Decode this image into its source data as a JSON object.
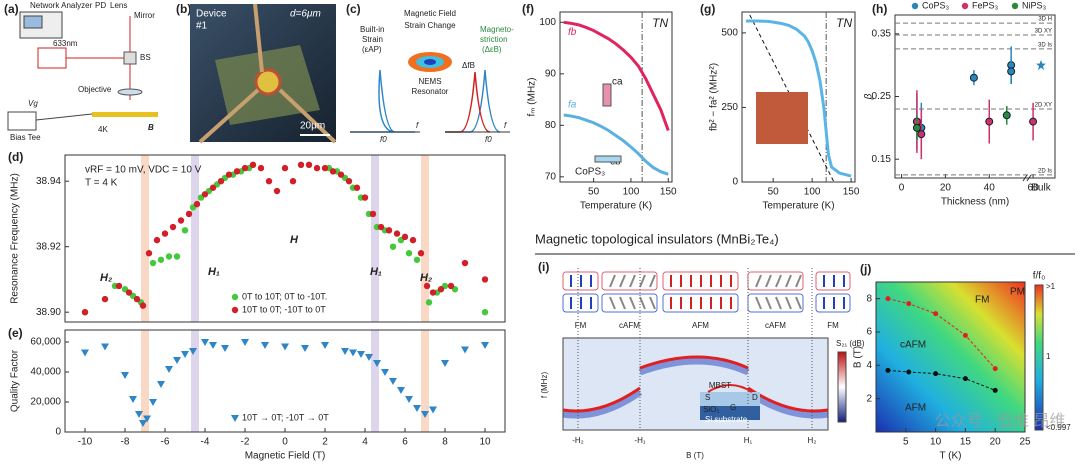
{
  "heading": "Magnetic topological insulators (MnBi₂Te₄)",
  "watermark": "公众号 · 低维 昂维",
  "panels": {
    "a": {
      "label": "(a)",
      "analyzer": "Network Analyzer",
      "pd": "PD",
      "lens": "Lens",
      "mirror": "Mirror",
      "laser": "633nm",
      "bs": "BS",
      "objective": "Objective",
      "vg": "Vg",
      "bias": "Bias Tee",
      "temp": "4K",
      "field": "B"
    },
    "b": {
      "label": "(b)",
      "device": "Device",
      "number": "#1",
      "diameter": "d=6μm",
      "scale": "20μm"
    },
    "c": {
      "label": "(c)",
      "builtin": "Built-in",
      "strain": "Strain",
      "eps": "(εAP)",
      "field": "Magnetic Field",
      "change": "Strain Change",
      "magneto": "Magneto-",
      "striction": "striction",
      "deps": "(ΔεB)",
      "nems": "NEMS",
      "resonator": "Resonator",
      "f0a": "f0",
      "f0b": "f0",
      "fa": "f",
      "fb": "f",
      "dfb": "ΔfB"
    },
    "i": {
      "label": "(i)",
      "states": [
        "FM",
        "cAFM",
        "AFM",
        "cAFM",
        "FM"
      ],
      "ylabel": "f (MHz)",
      "xlabel": "B (T)",
      "xticks": [
        "-H₂",
        "-H₁",
        "H₁",
        "H₂"
      ],
      "cbar": "S₂₁ (dB)",
      "inset": [
        "MBST",
        "S",
        "D",
        "G",
        "SiO₂",
        "Si substrate"
      ]
    }
  },
  "chart_data": [
    {
      "label": "(d)",
      "type": "scatter",
      "ylabel": "Resonance Frequency (MHz)",
      "xlim": [
        -11,
        11
      ],
      "ylim": [
        38.897,
        38.948
      ],
      "yticks": [
        {
          "value": 38.9,
          "label": "38.90"
        },
        {
          "value": 38.92,
          "label": "38.92"
        },
        {
          "value": 38.94,
          "label": "38.94"
        }
      ],
      "annotations": [
        "vRF = 10 mV, VDC = 10 V",
        "T = 4 K",
        "H₂",
        "H₁",
        "H",
        "H₁",
        "H₂"
      ],
      "bands": [
        {
          "x": -7,
          "color": "#f9d9c6"
        },
        {
          "x": -4.5,
          "color": "#ddd5ec"
        },
        {
          "x": 4.5,
          "color": "#ddd5ec"
        },
        {
          "x": 7,
          "color": "#f9d9c6"
        }
      ],
      "series": [
        {
          "name": "0T to 10T; 0T to -10T.",
          "color": "#44c83c",
          "marker": "circle",
          "x": [
            -10,
            -8.5,
            -8,
            -7.6,
            -7.2,
            -6.6,
            -6.2,
            -5.8,
            -5.4,
            -5,
            -4.6,
            -4.2,
            -3.8,
            -3.4,
            -3,
            -2.6,
            -2.2,
            -1.8,
            2.2,
            2.6,
            3,
            3.4,
            3.8,
            4.2,
            4.6,
            5,
            5.4,
            5.8,
            6.2,
            6.6,
            7.2,
            7.6,
            8,
            8.5,
            10
          ],
          "values": [
            38.9,
            38.908,
            38.907,
            38.905,
            38.903,
            38.915,
            38.916,
            38.917,
            38.917,
            38.925,
            38.932,
            38.935,
            38.937,
            38.939,
            38.941,
            38.942,
            38.943,
            38.944,
            38.944,
            38.943,
            38.941,
            38.938,
            38.935,
            38.93,
            38.926,
            38.925,
            38.92,
            38.922,
            38.918,
            38.916,
            38.903,
            38.906,
            38.908,
            38.907,
            38.9
          ]
        },
        {
          "name": "10T to 0T; -10T to 0T",
          "color": "#d0202a",
          "marker": "circle",
          "x": [
            -10,
            -9,
            -8.3,
            -7.8,
            -7.4,
            -7.1,
            -6.8,
            -6.4,
            -6,
            -5.6,
            -5.2,
            -4.8,
            -4.4,
            -4,
            -3.6,
            -3.2,
            -2.8,
            -2.4,
            -2,
            -1.6,
            -1.2,
            -0.8,
            -0.4,
            0,
            0.4,
            0.8,
            1.2,
            1.6,
            2,
            2.4,
            2.8,
            3.2,
            3.6,
            4,
            4.4,
            4.8,
            5.2,
            5.6,
            6,
            6.4,
            6.8,
            7.1,
            7.4,
            7.8,
            8.3,
            9,
            10
          ],
          "values": [
            38.9,
            38.904,
            38.908,
            38.906,
            38.904,
            38.902,
            38.918,
            38.922,
            38.924,
            38.926,
            38.928,
            38.93,
            38.933,
            38.936,
            38.938,
            38.94,
            38.942,
            38.943,
            38.944,
            38.945,
            38.944,
            38.94,
            38.937,
            38.944,
            38.94,
            38.945,
            38.945,
            38.944,
            38.944,
            38.943,
            38.942,
            38.94,
            38.938,
            38.935,
            38.93,
            38.926,
            38.925,
            38.924,
            38.923,
            38.922,
            38.918,
            38.908,
            38.906,
            38.907,
            38.908,
            38.915,
            38.91
          ]
        }
      ]
    },
    {
      "label": "(e)",
      "type": "scatter",
      "xlabel": "Magnetic Field (T)",
      "ylabel": "Quality Factor",
      "xlim": [
        -11,
        11
      ],
      "ylim": [
        0,
        68000
      ],
      "xticks": [
        -10,
        -8,
        -6,
        -4,
        -2,
        0,
        2,
        4,
        6,
        8,
        10
      ],
      "yticks": [
        0,
        {
          "value": 20000,
          "label": "20,000"
        },
        {
          "value": 40000,
          "label": "40,000"
        },
        {
          "value": 60000,
          "label": "60,000"
        }
      ],
      "bands": [
        {
          "x": -7,
          "color": "#f9d9c6"
        },
        {
          "x": -4.5,
          "color": "#ddd5ec"
        },
        {
          "x": 4.5,
          "color": "#ddd5ec"
        },
        {
          "x": 7,
          "color": "#f9d9c6"
        }
      ],
      "series": [
        {
          "name": "10T → 0T; -10T → 0T",
          "color": "#2e86c8",
          "marker": "tri",
          "x": [
            -10,
            -9,
            -8,
            -7.6,
            -7.3,
            -7.1,
            -6.9,
            -6.6,
            -6.2,
            -5.8,
            -5.4,
            -5,
            -4.6,
            -4,
            -3.6,
            -3,
            -2,
            -1,
            0,
            1,
            2,
            3,
            3.4,
            3.8,
            4.2,
            4.6,
            5,
            5.4,
            5.8,
            6.2,
            6.6,
            7,
            7.4,
            8,
            9,
            10
          ],
          "values": [
            53000,
            57000,
            38000,
            22000,
            12000,
            6000,
            9000,
            20000,
            32000,
            42000,
            48000,
            52000,
            54000,
            60000,
            58000,
            56000,
            60000,
            58000,
            57000,
            56000,
            58000,
            54000,
            53000,
            52000,
            50000,
            46000,
            40000,
            34000,
            28000,
            22000,
            16000,
            12000,
            15000,
            46000,
            55000,
            58000
          ]
        }
      ]
    },
    {
      "label": "(f)",
      "type": "line",
      "xlabel": "Temperature (K)",
      "ylabel": "fₘ (MHz)",
      "xlim": [
        5,
        155
      ],
      "ylim": [
        69,
        102
      ],
      "xticks": [
        50,
        100,
        150
      ],
      "yticks": [
        70,
        80,
        90,
        100
      ],
      "tn": 115,
      "tn_label": "TN",
      "annotations": [
        "CoPS₃",
        "cb",
        "ca"
      ],
      "x": [
        10,
        20,
        30,
        40,
        50,
        60,
        70,
        80,
        90,
        100,
        110,
        120,
        130,
        140,
        150
      ],
      "series": [
        {
          "name": "fb",
          "color": "#e0245e",
          "values": [
            100,
            99.8,
            99.5,
            99,
            98.4,
            97.6,
            96.8,
            95.8,
            94.6,
            93.2,
            91.5,
            89,
            86,
            83,
            79
          ]
        },
        {
          "name": "fa",
          "color": "#5bb0e0",
          "values": [
            82,
            81.8,
            81.5,
            81,
            80.5,
            79.8,
            79,
            78,
            77,
            75.8,
            74.5,
            73,
            71.8,
            71,
            70.5
          ]
        }
      ]
    },
    {
      "label": "(g)",
      "type": "line",
      "xlabel": "Temperature (K)",
      "ylabel": "fb² − fa² (MHz²)",
      "xlim": [
        10,
        155
      ],
      "ylim": [
        0,
        570
      ],
      "xticks": [
        50,
        100,
        150
      ],
      "yticks": [
        0,
        250,
        500
      ],
      "tn": 118,
      "tn_label": "TN",
      "x": [
        15,
        30,
        45,
        60,
        70,
        80,
        90,
        95,
        100,
        105,
        110,
        115,
        118,
        121,
        125,
        135,
        150
      ],
      "series": [
        {
          "color": "#5ab4e6",
          "values": [
            540,
            540,
            538,
            532,
            525,
            512,
            490,
            470,
            440,
            400,
            340,
            250,
            170,
            90,
            50,
            30,
            20
          ]
        }
      ]
    },
    {
      "label": "(h)",
      "type": "errorbar",
      "xlabel": "Thickness (nm)",
      "ylabel": "β",
      "xlim": [
        -3,
        70
      ],
      "ylim": [
        0.12,
        0.38
      ],
      "xticks": [
        0,
        20,
        40,
        60
      ],
      "yticks": [
        0.15,
        0.25,
        0.35
      ],
      "bulk_label": "Bulk",
      "ref_lines": [
        {
          "value": 0.367,
          "label": "3D H"
        },
        {
          "value": 0.348,
          "label": "3D XY"
        },
        {
          "value": 0.326,
          "label": "3D Is"
        },
        {
          "value": 0.23,
          "label": "2D XY"
        },
        {
          "value": 0.125,
          "label": "2D Is"
        }
      ],
      "series": [
        {
          "name": "CoPS₃",
          "color": "#2a86b8",
          "x": [
            7,
            9,
            33,
            50,
            50
          ],
          "values": [
            0.21,
            0.2,
            0.28,
            0.3,
            0.29
          ],
          "errors": [
            0.045,
            0.04,
            0.012,
            0.03,
            0.02
          ],
          "bulk": 0.3
        },
        {
          "name": "FePS₃",
          "color": "#d0306a",
          "x": [
            7,
            9,
            40,
            60
          ],
          "values": [
            0.21,
            0.19,
            0.21,
            0.21
          ],
          "errors": [
            0.05,
            0.04,
            0.035,
            0.03
          ]
        },
        {
          "name": "NiPS₃",
          "color": "#2a8a3a",
          "x": [
            7,
            48
          ],
          "values": [
            0.2,
            0.22
          ],
          "errors": [
            0.02,
            0.015
          ]
        }
      ]
    },
    {
      "label": "(j)",
      "type": "scatter",
      "xlabel": "T (K)",
      "ylabel": "B (T)",
      "xlim": [
        0,
        25
      ],
      "ylim": [
        0,
        9
      ],
      "xticks": [
        5,
        10,
        15,
        20,
        25
      ],
      "yticks": [
        2,
        4,
        6,
        8
      ],
      "annotations": [
        "FM",
        "PM",
        "cAFM",
        "AFM"
      ],
      "cbar_title": "f/f₀",
      "cbar_labels": [
        ">1",
        "1",
        "<0.997"
      ],
      "series": [
        {
          "color": "#e02020",
          "marker": "dot",
          "x": [
            2,
            5.5,
            10,
            15,
            20
          ],
          "values": [
            8,
            7.7,
            7.1,
            5.8,
            3.8
          ]
        },
        {
          "color": "#111111",
          "marker": "dot",
          "x": [
            2,
            5.5,
            10,
            15,
            20
          ],
          "values": [
            3.7,
            3.6,
            3.5,
            3.2,
            2.5
          ]
        }
      ]
    }
  ]
}
